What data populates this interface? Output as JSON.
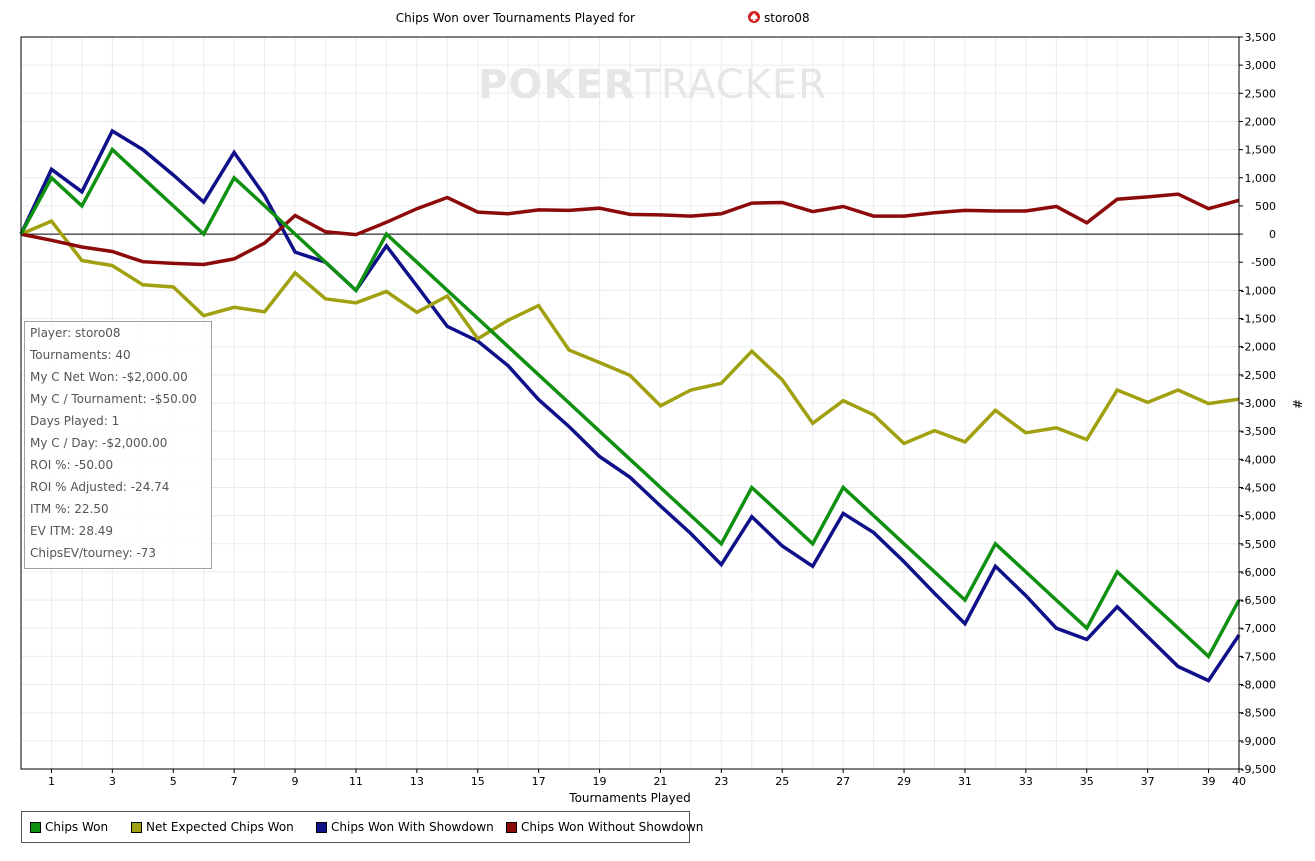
{
  "title": "Chips Won over Tournaments Played for",
  "title_player": "storo08",
  "watermark": {
    "part1": "POKER",
    "part2": "TRACKER"
  },
  "xlabel": "Tournaments Played",
  "ylabel": "#",
  "colors": {
    "chips_won": "#109010",
    "net_expected": "#a0a010",
    "with_showdown": "#10108a",
    "without_showdown": "#8c0a0a",
    "grid": "#ebebeb",
    "zero_line": "#000000"
  },
  "stats": [
    "Player: storo08",
    "Tournaments: 40",
    "My C Net Won: -$2,000.00",
    "My C / Tournament: -$50.00",
    "Days Played: 1",
    "My C / Day: -$2,000.00",
    "ROI %: -50.00",
    "ROI % Adjusted: -24.74",
    "ITM %: 22.50",
    "EV ITM: 28.49",
    "ChipsEV/tourney: -73"
  ],
  "legend": [
    {
      "label": "Chips Won",
      "color": "#109010"
    },
    {
      "label": "Net Expected Chips Won",
      "color": "#a0a010"
    },
    {
      "label": "Chips Won With Showdown",
      "color": "#10108a"
    },
    {
      "label": "Chips Won Without Showdown",
      "color": "#8c0a0a"
    }
  ],
  "chart_data": {
    "type": "line",
    "x": [
      0,
      1,
      2,
      3,
      4,
      5,
      6,
      7,
      8,
      9,
      10,
      11,
      12,
      13,
      14,
      15,
      16,
      17,
      18,
      19,
      20,
      21,
      22,
      23,
      24,
      25,
      26,
      27,
      28,
      29,
      30,
      31,
      32,
      33,
      34,
      35,
      36,
      37,
      38,
      39,
      40
    ],
    "xlim": [
      0,
      40
    ],
    "ylim": [
      -9500,
      3500
    ],
    "xticks": [
      1,
      3,
      5,
      7,
      9,
      11,
      13,
      15,
      17,
      19,
      21,
      23,
      25,
      27,
      29,
      31,
      33,
      35,
      37,
      39,
      40
    ],
    "yticks": [
      3500,
      3000,
      2500,
      2000,
      1500,
      1000,
      500,
      0,
      -500,
      -1000,
      -1500,
      -2000,
      -2500,
      -3000,
      -3500,
      -4000,
      -4500,
      -5000,
      -5500,
      -6000,
      -6500,
      -7000,
      -7500,
      -8000,
      -8500,
      -9000,
      -9500
    ],
    "ytick_labels": [
      "3,500",
      "3,000",
      "2,500",
      "2,000",
      "1,500",
      "1,000",
      "500",
      "0",
      "-500",
      "-1,000",
      "-1,500",
      "-2,000",
      "-2,500",
      "-3,000",
      "-3,500",
      "-4,000",
      "-4,500",
      "-5,000",
      "-5,500",
      "-6,000",
      "-6,500",
      "-7,000",
      "-7,500",
      "-8,000",
      "-8,500",
      "-9,000",
      "-9,500"
    ],
    "series": [
      {
        "name": "Chips Won With Showdown",
        "color": "#10108a",
        "values": [
          0,
          1150,
          750,
          1830,
          1500,
          1050,
          570,
          1450,
          680,
          -320,
          -500,
          -1000,
          -210,
          -920,
          -1640,
          -1900,
          -2340,
          -2940,
          -3420,
          -3950,
          -4320,
          -4830,
          -5320,
          -5870,
          -5020,
          -5540,
          -5900,
          -4960,
          -5300,
          -5820,
          -6380,
          -6920,
          -5900,
          -6420,
          -7000,
          -7200,
          -6620,
          -7150,
          -7680,
          -7930,
          -7120
        ]
      },
      {
        "name": "Net Expected Chips Won",
        "color": "#a0a010",
        "values": [
          0,
          230,
          -470,
          -560,
          -900,
          -940,
          -1450,
          -1300,
          -1380,
          -690,
          -1150,
          -1220,
          -1020,
          -1390,
          -1100,
          -1860,
          -1530,
          -1270,
          -2060,
          -2280,
          -2510,
          -3050,
          -2770,
          -2650,
          -2080,
          -2590,
          -3360,
          -2960,
          -3210,
          -3720,
          -3490,
          -3690,
          -3130,
          -3530,
          -3440,
          -3650,
          -2770,
          -2990,
          -2770,
          -3010,
          -2930
        ]
      },
      {
        "name": "Chips Won Without Showdown",
        "color": "#8c0a0a",
        "values": [
          0,
          -110,
          -230,
          -310,
          -490,
          -520,
          -540,
          -440,
          -160,
          330,
          40,
          -10,
          210,
          450,
          650,
          390,
          360,
          430,
          420,
          460,
          350,
          340,
          320,
          360,
          550,
          560,
          400,
          490,
          320,
          320,
          380,
          420,
          410,
          410,
          490,
          200,
          620,
          660,
          710,
          450,
          600
        ]
      },
      {
        "name": "Chips Won",
        "color": "#109010",
        "values": [
          0,
          1000,
          500,
          1500,
          1000,
          500,
          0,
          1000,
          500,
          0,
          -500,
          -1000,
          0,
          -500,
          -1000,
          -1500,
          -2000,
          -2500,
          -3000,
          -3500,
          -4000,
          -4500,
          -5000,
          -5500,
          -4500,
          -5000,
          -5500,
          -4500,
          -5000,
          -5500,
          -6000,
          -6500,
          -5500,
          -6000,
          -6500,
          -7000,
          -6000,
          -6500,
          -7000,
          -7500,
          -6500
        ]
      }
    ]
  }
}
